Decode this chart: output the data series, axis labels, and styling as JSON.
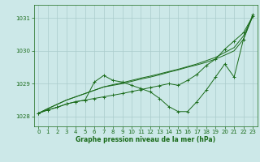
{
  "title": "Graphe pression niveau de la mer (hPa)",
  "bg_color": "#cce8e8",
  "grid_color": "#aacccc",
  "line_color": "#1a6b1a",
  "ylim": [
    1027.7,
    1031.4
  ],
  "xlim": [
    -0.5,
    23.5
  ],
  "yticks": [
    1028,
    1029,
    1030,
    1031
  ],
  "xticks": [
    0,
    1,
    2,
    3,
    4,
    5,
    6,
    7,
    8,
    9,
    10,
    11,
    12,
    13,
    14,
    15,
    16,
    17,
    18,
    19,
    20,
    21,
    22,
    23
  ],
  "series": [
    {
      "x": [
        0,
        1,
        2,
        3,
        4,
        5,
        6,
        7,
        8,
        9,
        10,
        11,
        12,
        13,
        14,
        15,
        16,
        17,
        18,
        19,
        20,
        21,
        22,
        23
      ],
      "y": [
        1028.1,
        1028.24,
        1028.37,
        1028.5,
        1028.6,
        1028.7,
        1028.8,
        1028.9,
        1028.95,
        1029.0,
        1029.07,
        1029.14,
        1029.2,
        1029.27,
        1029.35,
        1029.42,
        1029.5,
        1029.57,
        1029.65,
        1029.75,
        1029.87,
        1030.0,
        1030.35,
        1031.05
      ],
      "marker": false
    },
    {
      "x": [
        0,
        1,
        2,
        3,
        4,
        5,
        6,
        7,
        8,
        9,
        10,
        11,
        12,
        13,
        14,
        15,
        16,
        17,
        18,
        19,
        20,
        21,
        22,
        23
      ],
      "y": [
        1028.1,
        1028.24,
        1028.37,
        1028.5,
        1028.6,
        1028.7,
        1028.8,
        1028.9,
        1028.97,
        1029.03,
        1029.1,
        1029.17,
        1029.23,
        1029.3,
        1029.37,
        1029.44,
        1029.52,
        1029.6,
        1029.7,
        1029.8,
        1029.95,
        1030.1,
        1030.45,
        1031.05
      ],
      "marker": false
    },
    {
      "x": [
        0,
        1,
        2,
        3,
        4,
        5,
        6,
        7,
        8,
        9,
        10,
        11,
        12,
        13,
        14,
        15,
        16,
        17,
        18,
        19,
        20,
        21,
        22,
        23
      ],
      "y": [
        1028.1,
        1028.2,
        1028.28,
        1028.38,
        1028.45,
        1028.5,
        1029.05,
        1029.25,
        1029.1,
        1029.05,
        1028.95,
        1028.85,
        1028.75,
        1028.55,
        1028.3,
        1028.15,
        1028.15,
        1028.45,
        1028.8,
        1029.2,
        1029.6,
        1029.2,
        1030.35,
        1031.1
      ],
      "marker": true
    },
    {
      "x": [
        0,
        1,
        2,
        3,
        4,
        5,
        6,
        7,
        8,
        9,
        10,
        11,
        12,
        13,
        14,
        15,
        16,
        17,
        18,
        19,
        20,
        21,
        22,
        23
      ],
      "y": [
        1028.1,
        1028.2,
        1028.28,
        1028.38,
        1028.45,
        1028.5,
        1028.55,
        1028.6,
        1028.65,
        1028.7,
        1028.76,
        1028.82,
        1028.88,
        1028.94,
        1029.0,
        1028.95,
        1029.1,
        1029.28,
        1029.55,
        1029.75,
        1030.05,
        1030.3,
        1030.55,
        1031.05
      ],
      "marker": true
    }
  ]
}
